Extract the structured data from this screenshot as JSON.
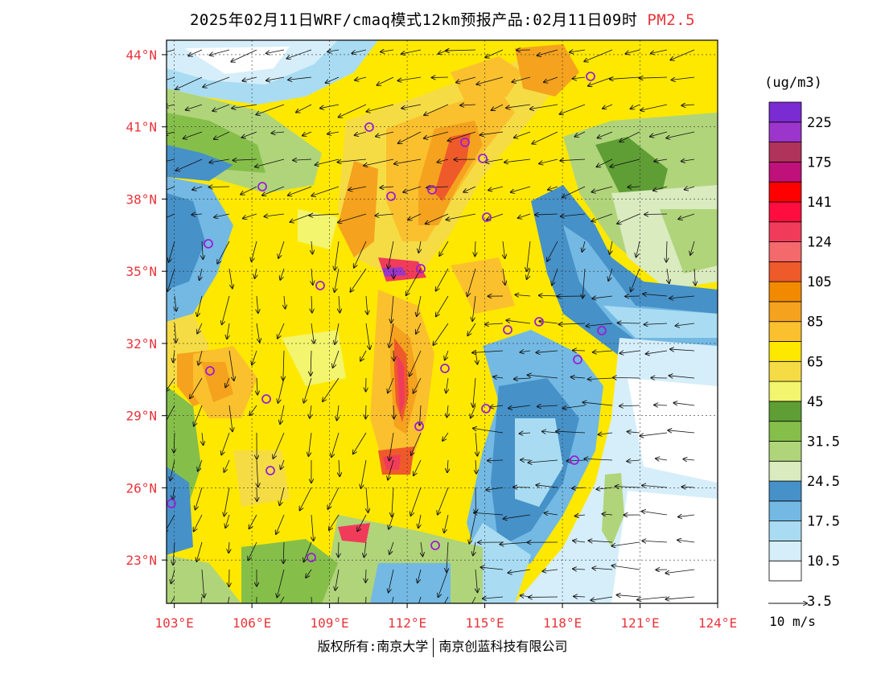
{
  "title": {
    "main": "2025年02月11日WRF/cmaq模式12km预报产品:02月11日09时",
    "species": "PM2.5"
  },
  "map": {
    "lon_range": [
      102.7,
      124
    ],
    "lat_range": [
      21.2,
      44.6
    ],
    "lat_labels": [
      "44°N",
      "41°N",
      "38°N",
      "35°N",
      "32°N",
      "29°N",
      "26°N",
      "23°N"
    ],
    "lat_values": [
      44,
      41,
      38,
      35,
      32,
      29,
      26,
      23
    ],
    "lon_labels": [
      "103°E",
      "106°E",
      "109°E",
      "112°E",
      "115°E",
      "118°E",
      "121°E",
      "124°E"
    ],
    "lon_values": [
      103,
      106,
      109,
      112,
      115,
      118,
      121,
      124
    ],
    "colors": {
      "axis_label": "#e8343a",
      "city_marker": "#9b1fd6"
    }
  },
  "legend": {
    "unit": "(ug/m3)",
    "labels": [
      "225",
      "175",
      "141",
      "124",
      "105",
      "85",
      "65",
      "45",
      "31.5",
      "24.5",
      "17.5",
      "10.5",
      "3.5"
    ],
    "colors": [
      "#ffffff",
      "#d6eefa",
      "#a9dcf2",
      "#73b9e3",
      "#4691c8",
      "#d9ebbf",
      "#b0d47a",
      "#85bf4a",
      "#5e9e35",
      "#f2f56d",
      "#f5dc45",
      "#ffe800",
      "#fbc02e",
      "#f5a21e",
      "#f28a00",
      "#ef5a2a",
      "#f4696b",
      "#f03c5a",
      "#ff0d3f",
      "#ff0000",
      "#c0107a",
      "#b0335b",
      "#9c35cc",
      "#7a2bd1"
    ]
  },
  "wind_scale": {
    "label": "10 m/s"
  },
  "copyright": {
    "left": "版权所有:南京大学",
    "right": "南京创蓝科技有限公司"
  }
}
